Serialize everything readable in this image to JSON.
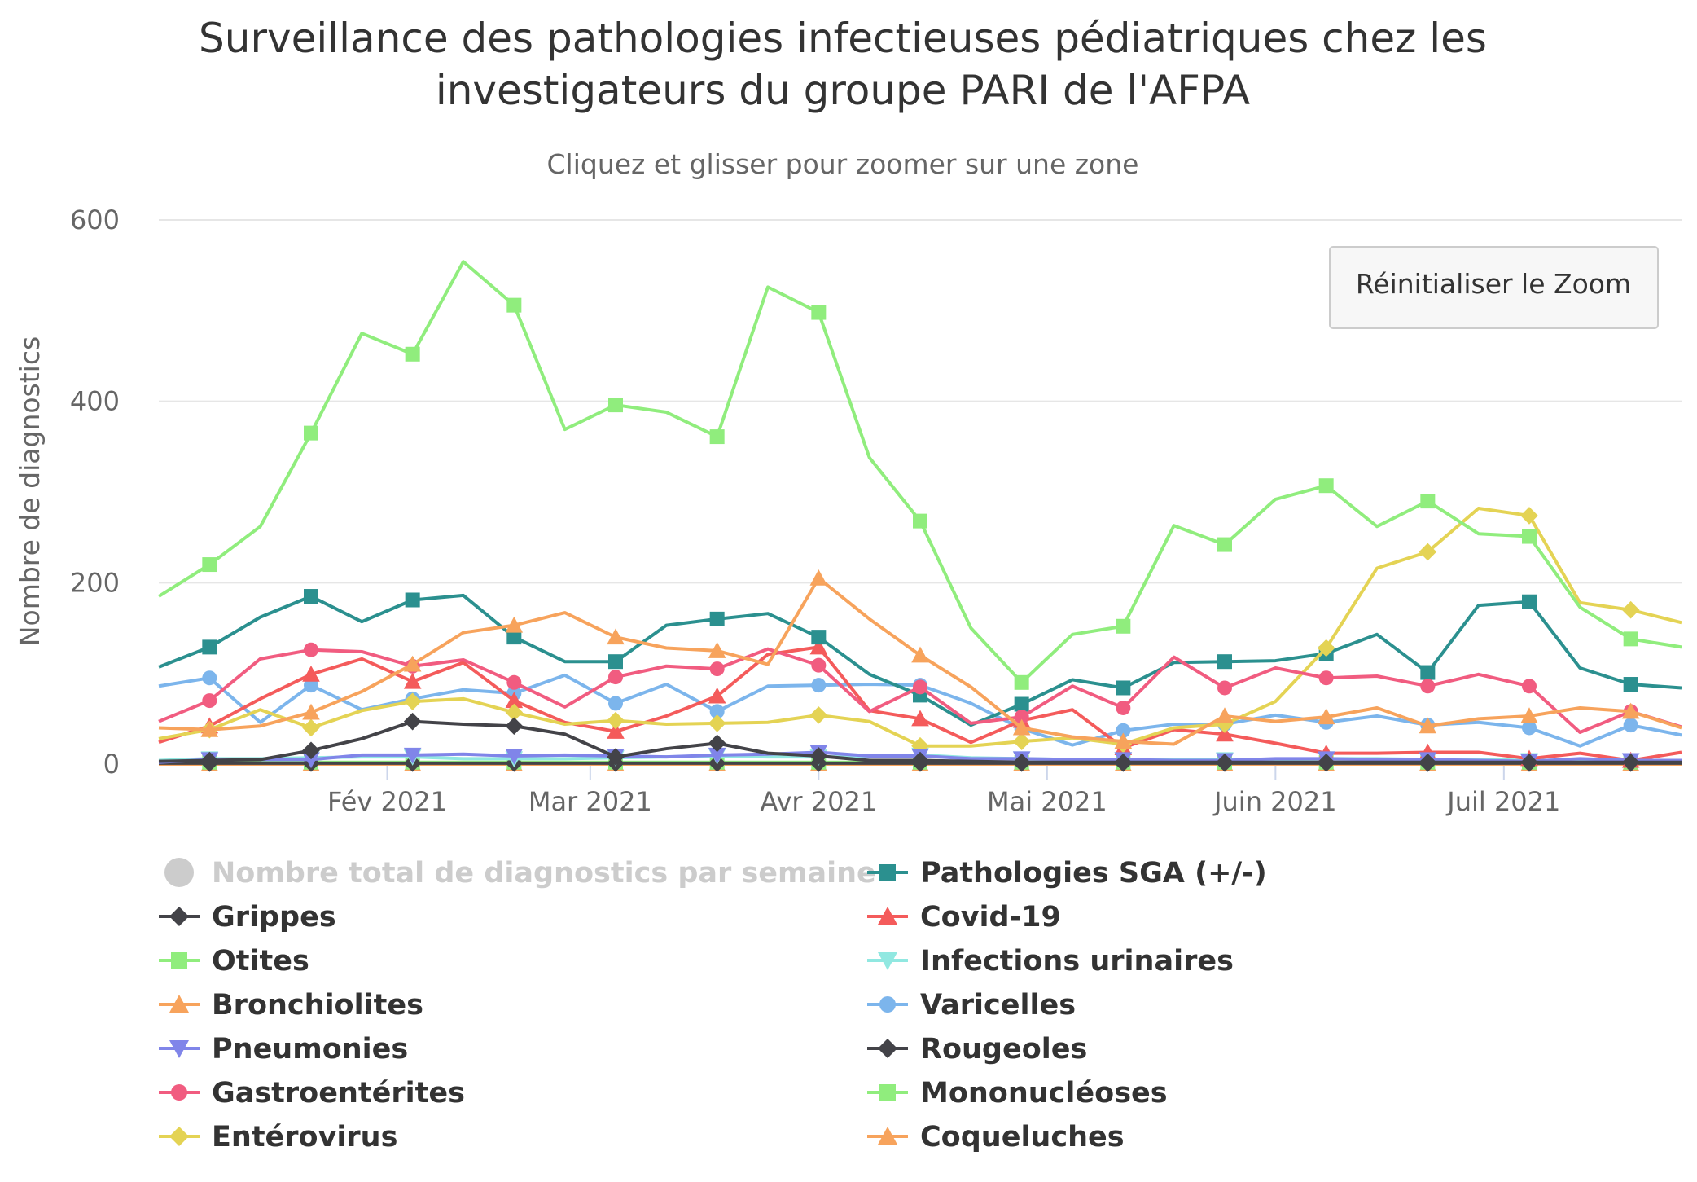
{
  "chart_data": {
    "type": "line",
    "title_lines": [
      "Surveillance des pathologies infectieuses pédiatriques chez les",
      "investigateurs du groupe PARI de l'AFPA"
    ],
    "subtitle": "Cliquez et glisser pour zoomer sur une zone",
    "ylabel": "Nombre de diagnostics",
    "ylim": [
      0,
      600
    ],
    "yticks": [
      "0",
      "200",
      "400",
      "600"
    ],
    "xlabels": [
      "Fév 2021",
      "Mar 2021",
      "Avr 2021",
      "Mai 2021",
      "Juin 2021",
      "Juil 2021"
    ],
    "week_count": 31,
    "label_weeks": [
      4.5,
      8.5,
      13,
      17.5,
      22,
      26.5
    ],
    "reset_button": "Réinitialiser le Zoom",
    "series": [
      {
        "name": "Nombre total de diagnostics par semaine",
        "color": "#cccccc",
        "marker": "circle",
        "visible": false,
        "values": []
      },
      {
        "name": "Grippes",
        "color": "#434348",
        "marker": "diamond",
        "visible": true,
        "values": [
          3,
          4,
          5,
          15,
          28,
          47,
          44,
          42,
          33,
          8,
          17,
          23,
          12,
          9,
          4,
          4,
          3,
          2,
          2,
          2,
          2,
          2,
          2,
          2,
          2,
          2,
          2,
          2,
          2,
          2,
          2
        ]
      },
      {
        "name": "Otites",
        "color": "#90ed7d",
        "marker": "square",
        "visible": true,
        "values": [
          185,
          220,
          262,
          365,
          475,
          452,
          554,
          506,
          369,
          396,
          388,
          361,
          526,
          498,
          338,
          268,
          150,
          90,
          143,
          152,
          263,
          242,
          292,
          307,
          262,
          290,
          254,
          251,
          173,
          138,
          129
        ]
      },
      {
        "name": "Bronchiolites",
        "color": "#f7a35c",
        "marker": "triangle",
        "visible": true,
        "values": [
          40,
          38,
          42,
          57,
          80,
          110,
          145,
          153,
          167,
          140,
          128,
          125,
          110,
          205,
          160,
          120,
          85,
          40,
          30,
          25,
          22,
          53,
          47,
          52,
          62,
          42,
          50,
          53,
          62,
          58,
          40
        ]
      },
      {
        "name": "Pneumonies",
        "color": "#8085e9",
        "marker": "triangle-down",
        "visible": true,
        "values": [
          2,
          5,
          5,
          5,
          10,
          10,
          11,
          9,
          10,
          9,
          8,
          10,
          11,
          13,
          9,
          9,
          6,
          6,
          5,
          5,
          4,
          4,
          6,
          6,
          5,
          5,
          4,
          3,
          6,
          4,
          4
        ]
      },
      {
        "name": "Gastroentérites",
        "color": "#f15c80",
        "marker": "circle",
        "visible": true,
        "values": [
          47,
          70,
          116,
          126,
          124,
          108,
          115,
          90,
          63,
          96,
          108,
          105,
          127,
          109,
          58,
          85,
          45,
          52,
          86,
          62,
          118,
          84,
          106,
          95,
          97,
          86,
          99,
          86,
          35,
          58,
          41
        ]
      },
      {
        "name": "Entérovirus",
        "color": "#e4d354",
        "marker": "diamond",
        "visible": true,
        "values": [
          28,
          38,
          60,
          40,
          59,
          69,
          72,
          57,
          44,
          48,
          44,
          45,
          46,
          54,
          47,
          20,
          20,
          25,
          29,
          22,
          40,
          44,
          69,
          128,
          216,
          234,
          282,
          274,
          178,
          170,
          156
        ]
      },
      {
        "name": "Pathologies SGA (+/-)",
        "color": "#2b908f",
        "marker": "square",
        "visible": true,
        "values": [
          107,
          129,
          162,
          185,
          157,
          181,
          186,
          140,
          113,
          113,
          153,
          160,
          166,
          140,
          99,
          76,
          43,
          66,
          93,
          84,
          112,
          113,
          114,
          122,
          143,
          101,
          175,
          179,
          106,
          88,
          84
        ]
      },
      {
        "name": "Covid-19",
        "color": "#f45b5b",
        "marker": "triangle",
        "visible": true,
        "values": [
          24,
          42,
          72,
          99,
          116,
          91,
          112,
          70,
          46,
          36,
          53,
          75,
          121,
          129,
          59,
          50,
          24,
          48,
          60,
          18,
          38,
          33,
          23,
          12,
          12,
          13,
          13,
          6,
          12,
          4,
          13
        ]
      },
      {
        "name": "Infections urinaires",
        "color": "#91e8e1",
        "marker": "triangle-down",
        "visible": true,
        "values": [
          4,
          6,
          6,
          7,
          8,
          8,
          6,
          6,
          6,
          7,
          8,
          9,
          8,
          8,
          8,
          10,
          7,
          6,
          5,
          5,
          5,
          5,
          5,
          6,
          6,
          5,
          5,
          4,
          4,
          4,
          4
        ]
      },
      {
        "name": "Varicelles",
        "color": "#7cb5ec",
        "marker": "circle",
        "visible": true,
        "values": [
          86,
          95,
          46,
          87,
          60,
          72,
          82,
          78,
          98,
          67,
          88,
          58,
          86,
          87,
          88,
          87,
          67,
          39,
          21,
          37,
          44,
          44,
          54,
          46,
          53,
          43,
          46,
          40,
          20,
          43,
          32
        ]
      },
      {
        "name": "Rougeoles",
        "color": "#434348",
        "marker": "diamond",
        "visible": true,
        "values": [
          1,
          1,
          1,
          1,
          1,
          1,
          1,
          1,
          1,
          1,
          1,
          1,
          1,
          1,
          1,
          1,
          1,
          1,
          1,
          1,
          1,
          1,
          1,
          1,
          1,
          1,
          1,
          1,
          1,
          1,
          1
        ]
      },
      {
        "name": "Mononucléoses",
        "color": "#90ed7d",
        "marker": "square",
        "visible": true,
        "values": [
          2,
          2,
          2,
          2,
          2,
          2,
          2,
          2,
          2,
          2,
          2,
          2,
          2,
          2,
          2,
          2,
          2,
          2,
          2,
          2,
          2,
          2,
          2,
          2,
          2,
          2,
          2,
          2,
          2,
          2,
          2
        ]
      },
      {
        "name": "Coqueluches",
        "color": "#f7a35c",
        "marker": "triangle",
        "visible": true,
        "values": [
          0,
          0,
          0,
          0,
          0,
          0,
          0,
          0,
          0,
          0,
          0,
          0,
          0,
          0,
          0,
          0,
          0,
          0,
          0,
          0,
          0,
          0,
          0,
          0,
          0,
          0,
          0,
          0,
          0,
          0,
          0
        ]
      }
    ]
  }
}
